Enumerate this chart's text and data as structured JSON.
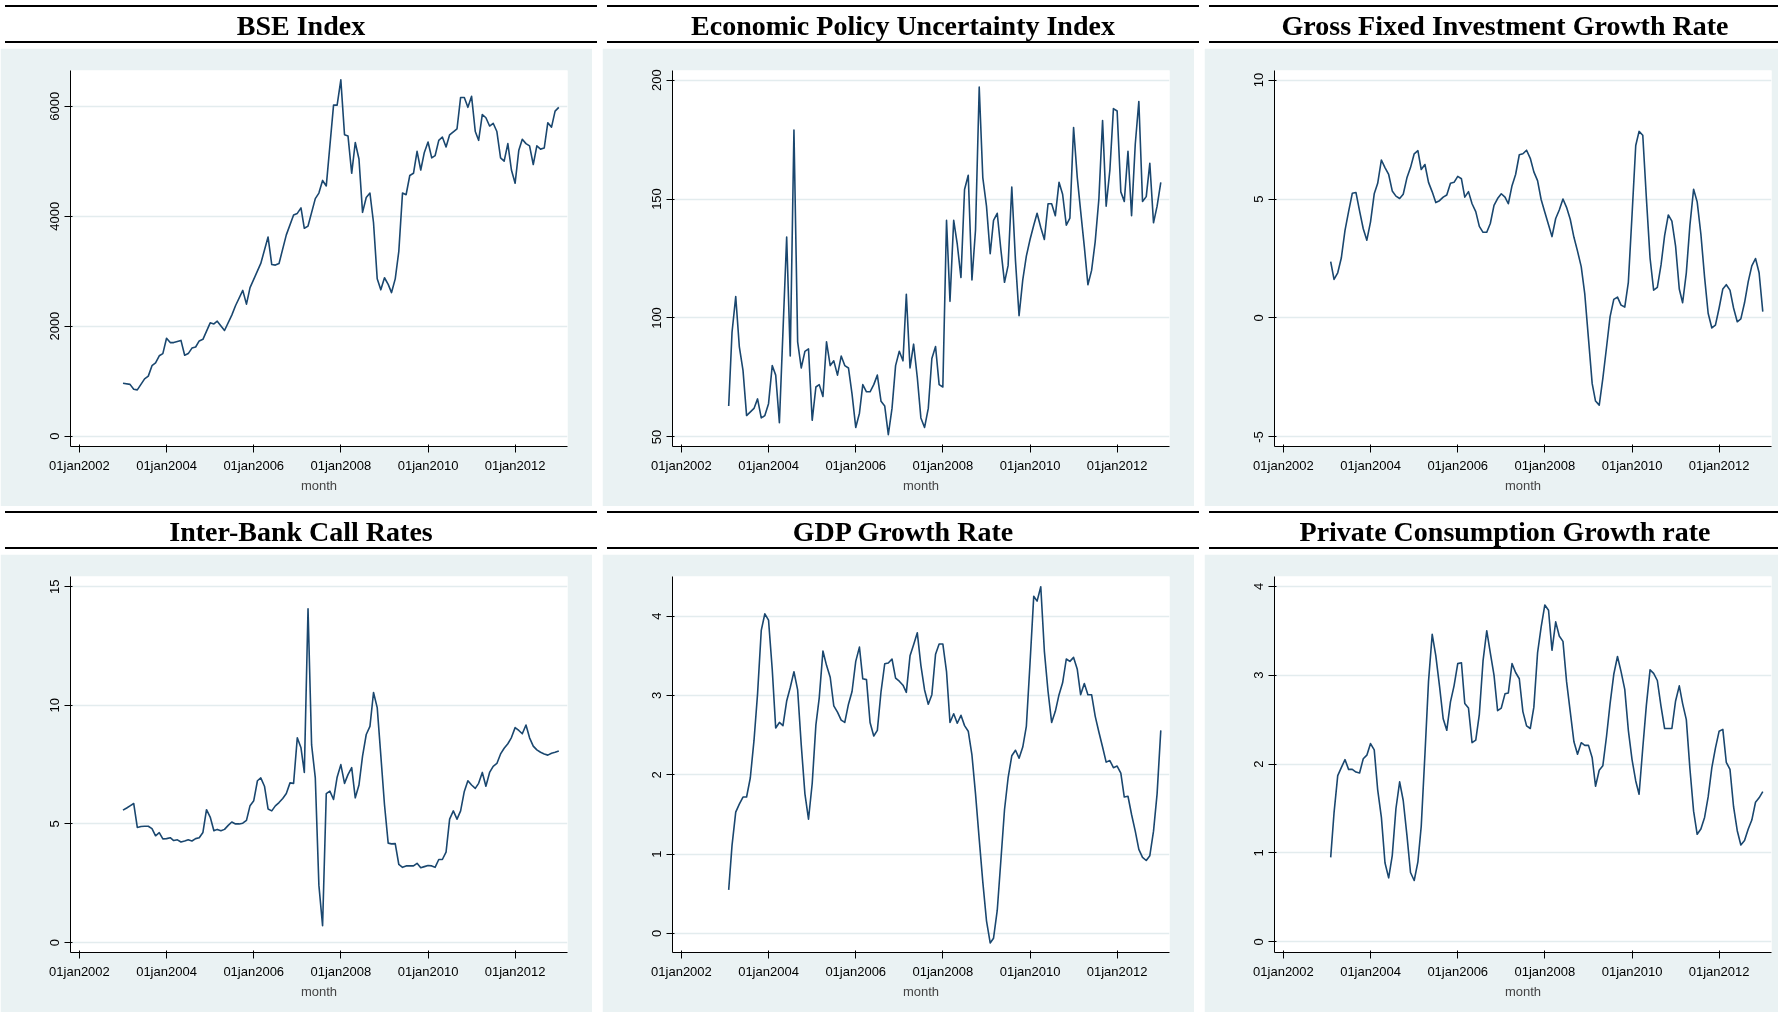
{
  "chart_data": [
    {
      "type": "line",
      "title": "BSE Index",
      "xlabel": "month",
      "color": "#1a476f",
      "grid": "y",
      "xlim": [
        "2001-10-18",
        "2013-03-15"
      ],
      "ylim": [
        -190,
        6650
      ],
      "yticks": [
        0,
        2000,
        4000,
        6000
      ],
      "xticks": [
        {
          "value": "2002-01-01",
          "label": "01jan2002"
        },
        {
          "value": "2004-01-01",
          "label": "01jan2004"
        },
        {
          "value": "2006-01-01",
          "label": "01jan2006"
        },
        {
          "value": "2008-01-01",
          "label": "01jan2008"
        },
        {
          "value": "2010-01-01",
          "label": "01jan2010"
        },
        {
          "value": "2012-01-01",
          "label": "01jan2012"
        }
      ],
      "x": [
        "2003-01",
        "2003-03",
        "2003-04",
        "2003-05",
        "2003-07",
        "2003-08",
        "2003-09",
        "2003-10",
        "2003-11",
        "2003-12",
        "2004-01",
        "2004-02",
        "2004-03",
        "2004-05",
        "2004-06",
        "2004-07",
        "2004-08",
        "2004-09",
        "2004-10",
        "2004-11",
        "2005-01",
        "2005-02",
        "2005-03",
        "2005-05",
        "2005-07",
        "2005-08",
        "2005-10",
        "2005-11",
        "2005-12",
        "2006-03",
        "2006-05",
        "2006-06",
        "2006-07",
        "2006-08",
        "2006-10",
        "2006-12",
        "2007-01",
        "2007-02",
        "2007-03",
        "2007-04",
        "2007-06",
        "2007-07",
        "2007-08",
        "2007-09",
        "2007-11",
        "2007-12",
        "2008-01",
        "2008-02",
        "2008-03",
        "2008-04",
        "2008-05",
        "2008-06",
        "2008-07",
        "2008-08",
        "2008-09",
        "2008-10",
        "2008-11",
        "2008-12",
        "2009-01",
        "2009-02",
        "2009-03",
        "2009-04",
        "2009-05",
        "2009-06",
        "2009-07",
        "2009-08",
        "2009-09",
        "2009-10",
        "2009-11",
        "2009-12",
        "2010-01",
        "2010-02",
        "2010-03",
        "2010-04",
        "2010-05",
        "2010-06",
        "2010-07",
        "2010-09",
        "2010-10",
        "2010-11",
        "2010-12",
        "2011-01",
        "2011-02",
        "2011-03",
        "2011-04",
        "2011-05",
        "2011-06",
        "2011-07",
        "2011-08",
        "2011-09",
        "2011-10",
        "2011-11",
        "2011-12",
        "2012-01",
        "2012-02",
        "2012-03",
        "2012-04",
        "2012-05",
        "2012-06",
        "2012-07",
        "2012-08",
        "2012-09",
        "2012-10",
        "2012-11",
        "2012-12",
        "2013-01"
      ],
      "values": [
        960,
        940,
        850,
        840,
        1040,
        1090,
        1280,
        1330,
        1460,
        1500,
        1780,
        1700,
        1700,
        1740,
        1470,
        1500,
        1600,
        1620,
        1730,
        1760,
        2060,
        2040,
        2090,
        1920,
        2200,
        2370,
        2650,
        2400,
        2700,
        3140,
        3620,
        3120,
        3110,
        3140,
        3660,
        4020,
        4050,
        4150,
        3780,
        3820,
        4320,
        4420,
        4650,
        4550,
        6020,
        6020,
        6480,
        5480,
        5460,
        4780,
        5340,
        5040,
        4070,
        4340,
        4420,
        3880,
        2860,
        2660,
        2880,
        2760,
        2610,
        2860,
        3360,
        4420,
        4390,
        4740,
        4780,
        5180,
        4840,
        5160,
        5350,
        5060,
        5100,
        5380,
        5440,
        5260,
        5480,
        5590,
        6160,
        6160,
        5980,
        6180,
        5540,
        5380,
        5850,
        5790,
        5640,
        5690,
        5540,
        5060,
        5000,
        5320,
        4840,
        4600,
        5200,
        5400,
        5320,
        5280,
        4940,
        5280,
        5220,
        5240,
        5700,
        5620,
        5910,
        5980
      ]
    },
    {
      "type": "line",
      "title": "Economic Policy Uncertainty Index",
      "xlabel": "month",
      "color": "#1a476f",
      "grid": "y",
      "xlim": [
        "2001-10-18",
        "2013-03-15"
      ],
      "ylim": [
        46,
        204
      ],
      "yticks": [
        50,
        100,
        150,
        200
      ],
      "xticks": [
        {
          "value": "2002-01-01",
          "label": "01jan2002"
        },
        {
          "value": "2004-01-01",
          "label": "01jan2004"
        },
        {
          "value": "2006-01-01",
          "label": "01jan2006"
        },
        {
          "value": "2008-01-01",
          "label": "01jan2008"
        },
        {
          "value": "2010-01-01",
          "label": "01jan2010"
        },
        {
          "value": "2012-01-01",
          "label": "01jan2012"
        }
      ],
      "x": [
        "2003-02",
        "2003-03",
        "2003-04",
        "2003-05",
        "2003-06",
        "2003-07",
        "2003-09",
        "2003-10",
        "2003-11",
        "2003-12",
        "2004-01",
        "2004-02",
        "2004-03",
        "2004-04",
        "2004-06",
        "2004-07",
        "2004-08",
        "2004-09",
        "2004-10",
        "2004-11",
        "2004-12",
        "2005-01",
        "2005-02",
        "2005-03",
        "2005-04",
        "2005-05",
        "2005-06",
        "2005-07",
        "2005-08",
        "2005-09",
        "2005-10",
        "2005-11",
        "2005-12",
        "2006-01",
        "2006-02",
        "2006-03",
        "2006-04",
        "2006-05",
        "2006-06",
        "2006-07",
        "2006-08",
        "2006-09",
        "2006-10",
        "2006-11",
        "2006-12",
        "2007-01",
        "2007-02",
        "2007-03",
        "2007-04",
        "2007-05",
        "2007-06",
        "2007-07",
        "2007-08",
        "2007-09",
        "2007-10",
        "2007-11",
        "2007-12",
        "2008-01",
        "2008-02",
        "2008-03",
        "2008-04",
        "2008-05",
        "2008-06",
        "2008-07",
        "2008-08",
        "2008-09",
        "2008-10",
        "2008-11",
        "2008-12",
        "2009-01",
        "2009-02",
        "2009-03",
        "2009-04",
        "2009-05",
        "2009-06",
        "2009-07",
        "2009-08",
        "2009-09",
        "2009-10",
        "2009-11",
        "2009-12",
        "2010-01",
        "2010-02",
        "2010-03",
        "2010-04",
        "2010-05",
        "2010-06",
        "2010-07",
        "2010-08",
        "2010-09",
        "2010-10",
        "2010-11",
        "2010-12",
        "2011-01",
        "2011-02",
        "2011-03",
        "2011-04",
        "2011-05",
        "2011-06",
        "2011-07",
        "2011-08",
        "2011-09",
        "2011-10",
        "2011-11",
        "2011-12",
        "2012-01",
        "2012-02",
        "2012-03",
        "2012-04",
        "2012-05",
        "2012-06",
        "2012-07",
        "2012-08",
        "2012-09",
        "2012-10",
        "2012-11",
        "2012-12",
        "2013-01"
      ],
      "values": [
        63,
        94,
        109,
        88,
        78,
        59,
        62,
        66,
        58,
        59,
        64,
        80,
        76,
        56,
        134,
        84,
        179,
        90,
        79,
        86,
        87,
        57,
        71,
        72,
        67,
        90,
        80,
        82,
        76,
        84,
        80,
        79,
        68,
        54,
        60,
        72,
        69,
        69,
        72,
        76,
        65,
        63,
        51,
        62,
        80,
        86,
        82,
        110,
        79,
        89,
        75,
        58,
        54,
        62,
        83,
        88,
        72,
        71,
        141,
        107,
        141,
        131,
        117,
        154,
        160,
        116,
        137,
        197,
        159,
        147,
        127,
        141,
        144,
        129,
        115,
        122,
        155,
        124,
        101,
        116,
        126,
        133,
        139,
        144,
        138,
        133,
        148,
        148,
        143,
        157,
        152,
        139,
        142,
        180,
        159,
        145,
        130,
        114,
        120,
        132,
        150,
        183,
        147,
        162,
        188,
        187,
        153,
        149,
        170,
        143,
        173,
        191,
        149,
        151,
        165,
        140,
        147,
        157
      ]
    },
    {
      "type": "line",
      "title": "Gross Fixed Investment Growth Rate",
      "xlabel": "month",
      "color": "#1a476f",
      "grid": "y",
      "xlim": [
        "2001-10-18",
        "2013-03-15"
      ],
      "ylim": [
        -5.4,
        10.4
      ],
      "yticks": [
        -5,
        0,
        5,
        10
      ],
      "xticks": [
        {
          "value": "2002-01-01",
          "label": "01jan2002"
        },
        {
          "value": "2004-01-01",
          "label": "01jan2004"
        },
        {
          "value": "2006-01-01",
          "label": "01jan2006"
        },
        {
          "value": "2008-01-01",
          "label": "01jan2008"
        },
        {
          "value": "2010-01-01",
          "label": "01jan2010"
        },
        {
          "value": "2012-01-01",
          "label": "01jan2012"
        }
      ],
      "x": [
        "2003-02",
        "2003-03",
        "2003-04",
        "2003-05",
        "2003-06",
        "2003-07",
        "2003-08",
        "2003-09",
        "2003-10",
        "2003-11",
        "2003-12",
        "2004-01",
        "2004-02",
        "2004-03",
        "2004-04",
        "2004-05",
        "2004-06",
        "2004-07",
        "2004-08",
        "2004-09",
        "2004-10",
        "2004-11",
        "2004-12",
        "2005-01",
        "2005-02",
        "2005-03",
        "2005-04",
        "2005-05",
        "2005-06",
        "2005-07",
        "2005-08",
        "2005-09",
        "2005-10",
        "2005-11",
        "2005-12",
        "2006-01",
        "2006-02",
        "2006-03",
        "2006-04",
        "2006-05",
        "2006-06",
        "2006-07",
        "2006-08",
        "2006-09",
        "2006-10",
        "2006-11",
        "2006-12",
        "2007-01",
        "2007-02",
        "2007-03",
        "2007-04",
        "2007-05",
        "2007-06",
        "2007-07",
        "2007-08",
        "2007-09",
        "2007-10",
        "2007-11",
        "2007-12",
        "2008-01",
        "2008-02",
        "2008-03",
        "2008-04",
        "2008-05",
        "2008-06",
        "2008-07",
        "2008-08",
        "2008-09",
        "2008-10",
        "2008-11",
        "2008-12",
        "2009-01",
        "2009-02",
        "2009-03",
        "2009-04",
        "2009-05",
        "2009-06",
        "2009-07",
        "2009-08",
        "2009-09",
        "2009-10",
        "2009-11",
        "2009-12",
        "2010-01",
        "2010-02",
        "2010-03",
        "2010-04",
        "2010-05",
        "2010-06",
        "2010-07",
        "2010-08",
        "2010-09",
        "2010-10",
        "2010-11",
        "2010-12",
        "2011-01",
        "2011-02",
        "2011-03",
        "2011-04",
        "2011-05",
        "2011-06",
        "2011-07",
        "2011-08",
        "2011-09",
        "2011-10",
        "2011-11",
        "2011-12",
        "2012-01",
        "2012-02",
        "2012-03",
        "2012-04",
        "2012-05",
        "2012-06",
        "2012-07",
        "2012-08",
        "2012-09",
        "2012-10",
        "2012-11",
        "2012-12",
        "2013-01"
      ],
      "values": [
        2.37,
        1.62,
        1.9,
        2.52,
        3.68,
        4.47,
        5.24,
        5.27,
        4.5,
        3.75,
        3.27,
        4.04,
        5.22,
        5.66,
        6.64,
        6.32,
        6.03,
        5.34,
        5.12,
        5.02,
        5.2,
        5.89,
        6.32,
        6.9,
        7.03,
        6.24,
        6.45,
        5.7,
        5.3,
        4.85,
        4.93,
        5.08,
        5.17,
        5.66,
        5.7,
        5.95,
        5.85,
        5.08,
        5.31,
        4.8,
        4.47,
        3.85,
        3.6,
        3.6,
        3.97,
        4.73,
        5.02,
        5.22,
        5.08,
        4.8,
        5.56,
        6.03,
        6.86,
        6.9,
        7.05,
        6.71,
        6.14,
        5.77,
        4.98,
        4.44,
        3.92,
        3.42,
        4.18,
        4.54,
        5.0,
        4.65,
        4.15,
        3.39,
        2.81,
        2.16,
        1.0,
        -0.88,
        -2.76,
        -3.49,
        -3.66,
        -2.55,
        -1.24,
        0.06,
        0.78,
        0.88,
        0.54,
        0.46,
        1.5,
        4.33,
        7.25,
        7.84,
        7.68,
        5.05,
        2.52,
        1.17,
        1.29,
        2.23,
        3.46,
        4.33,
        4.07,
        3.02,
        1.22,
        0.64,
        1.9,
        3.89,
        5.41,
        4.88,
        3.53,
        1.72,
        0.2,
        -0.42,
        -0.3,
        0.42,
        1.22,
        1.4,
        1.17,
        0.42,
        -0.16,
        -0.04,
        0.64,
        1.53,
        2.19,
        2.5,
        1.9,
        0.27
      ]
    },
    {
      "type": "line",
      "title": "Inter-Bank Call Rates",
      "xlabel": "month",
      "color": "#1a476f",
      "grid": "y",
      "xlim": [
        "2001-10-18",
        "2013-03-15"
      ],
      "ylim": [
        -0.42,
        15.43
      ],
      "yticks": [
        0,
        5,
        10,
        15
      ],
      "xticks": [
        {
          "value": "2002-01-01",
          "label": "01jan2002"
        },
        {
          "value": "2004-01-01",
          "label": "01jan2004"
        },
        {
          "value": "2006-01-01",
          "label": "01jan2006"
        },
        {
          "value": "2008-01-01",
          "label": "01jan2008"
        },
        {
          "value": "2010-01-01",
          "label": "01jan2010"
        },
        {
          "value": "2012-01-01",
          "label": "01jan2012"
        }
      ],
      "x": [
        "2003-01",
        "2003-02",
        "2003-03",
        "2003-04",
        "2003-05",
        "2003-06",
        "2003-07",
        "2003-08",
        "2003-09",
        "2003-10",
        "2003-11",
        "2003-12",
        "2004-01",
        "2004-02",
        "2004-03",
        "2004-04",
        "2004-05",
        "2004-06",
        "2004-07",
        "2004-08",
        "2004-09",
        "2004-10",
        "2004-11",
        "2004-12",
        "2005-01",
        "2005-02",
        "2005-03",
        "2005-04",
        "2005-05",
        "2005-06",
        "2005-07",
        "2005-08",
        "2005-09",
        "2005-10",
        "2005-11",
        "2005-12",
        "2006-01",
        "2006-02",
        "2006-03",
        "2006-04",
        "2006-05",
        "2006-06",
        "2006-07",
        "2006-08",
        "2006-09",
        "2006-10",
        "2006-11",
        "2006-12",
        "2007-01",
        "2007-02",
        "2007-03",
        "2007-04",
        "2007-05",
        "2007-06",
        "2007-07",
        "2007-08",
        "2007-09",
        "2007-10",
        "2007-11",
        "2007-12",
        "2008-01",
        "2008-02",
        "2008-03",
        "2008-04",
        "2008-05",
        "2008-06",
        "2008-07",
        "2008-08",
        "2008-09",
        "2008-10",
        "2008-11",
        "2008-12",
        "2009-01",
        "2009-02",
        "2009-03",
        "2009-04",
        "2009-05",
        "2009-06",
        "2009-07",
        "2009-08",
        "2009-09",
        "2009-10",
        "2009-11",
        "2009-12",
        "2010-01",
        "2010-02",
        "2010-03",
        "2010-04",
        "2010-05",
        "2010-06",
        "2010-07",
        "2010-08",
        "2010-09",
        "2010-10",
        "2010-11",
        "2010-12",
        "2011-01",
        "2011-02",
        "2011-03",
        "2011-04",
        "2011-05",
        "2011-06",
        "2011-07",
        "2011-08",
        "2011-09",
        "2011-10",
        "2011-11",
        "2011-12",
        "2012-01",
        "2012-02",
        "2012-03",
        "2012-04",
        "2012-05",
        "2012-06",
        "2012-07",
        "2012-08",
        "2012-09",
        "2012-10",
        "2012-11",
        "2012-12",
        "2013-01"
      ],
      "values": [
        5.58,
        5.67,
        5.76,
        5.86,
        4.85,
        4.89,
        4.9,
        4.9,
        4.8,
        4.5,
        4.63,
        4.37,
        4.38,
        4.42,
        4.3,
        4.33,
        4.24,
        4.28,
        4.33,
        4.28,
        4.38,
        4.42,
        4.64,
        5.6,
        5.29,
        4.71,
        4.77,
        4.71,
        4.77,
        4.94,
        5.08,
        5.0,
        5.0,
        5.03,
        5.15,
        5.77,
        5.98,
        6.82,
        6.94,
        6.59,
        5.63,
        5.55,
        5.76,
        5.9,
        6.07,
        6.28,
        6.73,
        6.71,
        8.63,
        8.21,
        7.17,
        14.07,
        8.33,
        6.94,
        2.42,
        0.71,
        6.28,
        6.38,
        6.03,
        6.97,
        7.5,
        6.71,
        7.08,
        7.37,
        6.1,
        6.64,
        7.86,
        8.77,
        9.11,
        10.54,
        9.9,
        7.9,
        5.81,
        4.19,
        4.16,
        4.17,
        3.29,
        3.17,
        3.23,
        3.23,
        3.23,
        3.34,
        3.15,
        3.2,
        3.25,
        3.23,
        3.17,
        3.5,
        3.5,
        3.81,
        5.2,
        5.55,
        5.2,
        5.55,
        6.37,
        6.82,
        6.64,
        6.5,
        6.71,
        7.17,
        6.59,
        7.17,
        7.43,
        7.55,
        7.95,
        8.19,
        8.38,
        8.64,
        9.06,
        8.94,
        8.8,
        9.17,
        8.63,
        8.28,
        8.12,
        8.02,
        7.95,
        7.9,
        7.98,
        8.02,
        8.07
      ]
    },
    {
      "type": "line",
      "title": "GDP Growth Rate",
      "xlabel": "month",
      "color": "#1a476f",
      "grid": "y",
      "xlim": [
        "2001-10-18",
        "2013-03-15"
      ],
      "ylim": [
        -0.24,
        4.5
      ],
      "yticks": [
        0,
        1,
        2,
        3,
        4
      ],
      "xticks": [
        {
          "value": "2002-01-01",
          "label": "01jan2002"
        },
        {
          "value": "2004-01-01",
          "label": "01jan2004"
        },
        {
          "value": "2006-01-01",
          "label": "01jan2006"
        },
        {
          "value": "2008-01-01",
          "label": "01jan2008"
        },
        {
          "value": "2010-01-01",
          "label": "01jan2010"
        },
        {
          "value": "2012-01-01",
          "label": "01jan2012"
        }
      ],
      "x": [
        "2003-02",
        "2003-03",
        "2003-04",
        "2003-05",
        "2003-06",
        "2003-07",
        "2003-08",
        "2003-09",
        "2003-10",
        "2003-11",
        "2003-12",
        "2004-01",
        "2004-02",
        "2004-03",
        "2004-04",
        "2004-05",
        "2004-06",
        "2004-07",
        "2004-08",
        "2004-09",
        "2004-10",
        "2004-11",
        "2004-12",
        "2005-01",
        "2005-02",
        "2005-03",
        "2005-04",
        "2005-05",
        "2005-06",
        "2005-07",
        "2005-08",
        "2005-09",
        "2005-10",
        "2005-11",
        "2005-12",
        "2006-01",
        "2006-02",
        "2006-03",
        "2006-04",
        "2006-05",
        "2006-06",
        "2006-07",
        "2006-08",
        "2006-09",
        "2006-10",
        "2006-11",
        "2006-12",
        "2007-01",
        "2007-02",
        "2007-03",
        "2007-04",
        "2007-05",
        "2007-06",
        "2007-07",
        "2007-08",
        "2007-09",
        "2007-10",
        "2007-11",
        "2007-12",
        "2008-01",
        "2008-02",
        "2008-03",
        "2008-04",
        "2008-05",
        "2008-06",
        "2008-07",
        "2008-08",
        "2008-09",
        "2008-10",
        "2008-11",
        "2008-12",
        "2009-01",
        "2009-02",
        "2009-03",
        "2009-04",
        "2009-05",
        "2009-06",
        "2009-07",
        "2009-08",
        "2009-09",
        "2009-10",
        "2009-11",
        "2009-12",
        "2010-01",
        "2010-02",
        "2010-03",
        "2010-04",
        "2010-05",
        "2010-06",
        "2010-07",
        "2010-08",
        "2010-09",
        "2010-10",
        "2010-11",
        "2010-12",
        "2011-01",
        "2011-02",
        "2011-03",
        "2011-04",
        "2011-05",
        "2011-06",
        "2011-07",
        "2011-08",
        "2011-09",
        "2011-10",
        "2011-11",
        "2011-12",
        "2012-01",
        "2012-02",
        "2012-03",
        "2012-04",
        "2012-05",
        "2012-06",
        "2012-07",
        "2012-08",
        "2012-09",
        "2012-10",
        "2012-11",
        "2012-12",
        "2013-01"
      ],
      "values": [
        0.55,
        1.11,
        1.53,
        1.63,
        1.72,
        1.72,
        1.96,
        2.43,
        3.02,
        3.82,
        4.03,
        3.95,
        3.33,
        2.59,
        2.66,
        2.62,
        2.93,
        3.1,
        3.3,
        3.07,
        2.38,
        1.76,
        1.44,
        1.89,
        2.63,
        2.97,
        3.56,
        3.38,
        3.23,
        2.87,
        2.79,
        2.69,
        2.66,
        2.89,
        3.05,
        3.43,
        3.61,
        3.21,
        3.2,
        2.66,
        2.49,
        2.56,
        3.05,
        3.4,
        3.41,
        3.46,
        3.22,
        3.18,
        3.13,
        3.04,
        3.5,
        3.64,
        3.79,
        3.38,
        3.07,
        2.89,
        3.01,
        3.52,
        3.65,
        3.65,
        3.3,
        2.66,
        2.77,
        2.65,
        2.75,
        2.62,
        2.55,
        2.25,
        1.76,
        1.19,
        0.65,
        0.16,
        -0.12,
        -0.06,
        0.29,
        0.91,
        1.56,
        1.96,
        2.24,
        2.31,
        2.21,
        2.35,
        2.61,
        3.41,
        4.25,
        4.19,
        4.37,
        3.56,
        3.05,
        2.66,
        2.8,
        3.01,
        3.16,
        3.46,
        3.43,
        3.48,
        3.33,
        3.01,
        3.15,
        3.01,
        3.01,
        2.74,
        2.54,
        2.35,
        2.16,
        2.18,
        2.09,
        2.11,
        2.02,
        1.72,
        1.73,
        1.5,
        1.29,
        1.06,
        0.96,
        0.92,
        0.98,
        1.29,
        1.76,
        2.56
      ]
    },
    {
      "type": "line",
      "title": "Private Consumption Growth rate",
      "xlabel": "month",
      "color": "#1a476f",
      "grid": "y",
      "xlim": [
        "2001-10-18",
        "2013-03-15"
      ],
      "ylim": [
        -0.12,
        4.11
      ],
      "yticks": [
        0,
        1,
        2,
        3,
        4
      ],
      "xticks": [
        {
          "value": "2002-01-01",
          "label": "01jan2002"
        },
        {
          "value": "2004-01-01",
          "label": "01jan2004"
        },
        {
          "value": "2006-01-01",
          "label": "01jan2006"
        },
        {
          "value": "2008-01-01",
          "label": "01jan2008"
        },
        {
          "value": "2010-01-01",
          "label": "01jan2010"
        },
        {
          "value": "2012-01-01",
          "label": "01jan2012"
        }
      ],
      "x": [
        "2003-02",
        "2003-03",
        "2003-04",
        "2003-05",
        "2003-06",
        "2003-07",
        "2003-08",
        "2003-09",
        "2003-10",
        "2003-11",
        "2003-12",
        "2004-01",
        "2004-02",
        "2004-03",
        "2004-04",
        "2004-05",
        "2004-06",
        "2004-07",
        "2004-08",
        "2004-09",
        "2004-10",
        "2004-11",
        "2004-12",
        "2005-01",
        "2005-02",
        "2005-03",
        "2005-04",
        "2005-05",
        "2005-06",
        "2005-07",
        "2005-08",
        "2005-09",
        "2005-10",
        "2005-11",
        "2005-12",
        "2006-01",
        "2006-02",
        "2006-03",
        "2006-04",
        "2006-05",
        "2006-06",
        "2006-07",
        "2006-08",
        "2006-09",
        "2006-10",
        "2006-11",
        "2006-12",
        "2007-01",
        "2007-02",
        "2007-03",
        "2007-04",
        "2007-05",
        "2007-06",
        "2007-07",
        "2007-08",
        "2007-09",
        "2007-10",
        "2007-11",
        "2007-12",
        "2008-01",
        "2008-02",
        "2008-03",
        "2008-04",
        "2008-05",
        "2008-06",
        "2008-07",
        "2008-08",
        "2008-09",
        "2008-10",
        "2008-11",
        "2008-12",
        "2009-01",
        "2009-02",
        "2009-03",
        "2009-04",
        "2009-05",
        "2009-06",
        "2009-07",
        "2009-08",
        "2009-09",
        "2009-10",
        "2009-11",
        "2009-12",
        "2010-01",
        "2010-02",
        "2010-03",
        "2010-04",
        "2010-05",
        "2010-06",
        "2010-07",
        "2010-08",
        "2010-09",
        "2010-10",
        "2010-11",
        "2010-12",
        "2011-01",
        "2011-02",
        "2011-03",
        "2011-04",
        "2011-05",
        "2011-06",
        "2011-07",
        "2011-08",
        "2011-09",
        "2011-10",
        "2011-11",
        "2011-12",
        "2012-01",
        "2012-02",
        "2012-03",
        "2012-04",
        "2012-05",
        "2012-06",
        "2012-07",
        "2012-08",
        "2012-09",
        "2012-10",
        "2012-11",
        "2012-12",
        "2013-01"
      ],
      "values": [
        0.95,
        1.45,
        1.87,
        1.96,
        2.05,
        1.94,
        1.94,
        1.91,
        1.9,
        2.06,
        2.1,
        2.23,
        2.16,
        1.71,
        1.4,
        0.89,
        0.72,
        0.97,
        1.5,
        1.8,
        1.59,
        1.2,
        0.78,
        0.69,
        0.9,
        1.3,
        2.11,
        2.93,
        3.46,
        3.22,
        2.88,
        2.51,
        2.38,
        2.7,
        2.88,
        3.13,
        3.14,
        2.68,
        2.63,
        2.24,
        2.27,
        2.56,
        3.16,
        3.5,
        3.25,
        3.0,
        2.6,
        2.63,
        2.79,
        2.8,
        3.13,
        3.03,
        2.96,
        2.59,
        2.43,
        2.4,
        2.64,
        3.25,
        3.54,
        3.79,
        3.73,
        3.28,
        3.6,
        3.44,
        3.38,
        2.93,
        2.59,
        2.25,
        2.11,
        2.24,
        2.21,
        2.21,
        2.07,
        1.75,
        1.93,
        1.98,
        2.31,
        2.68,
        3.01,
        3.21,
        3.04,
        2.84,
        2.38,
        2.05,
        1.81,
        1.66,
        2.18,
        2.66,
        3.06,
        3.02,
        2.94,
        2.65,
        2.4,
        2.4,
        2.4,
        2.71,
        2.88,
        2.68,
        2.5,
        1.95,
        1.47,
        1.21,
        1.27,
        1.4,
        1.63,
        1.96,
        2.18,
        2.37,
        2.39,
        2.02,
        1.94,
        1.52,
        1.25,
        1.09,
        1.14,
        1.27,
        1.37,
        1.57,
        1.62,
        1.69
      ]
    }
  ]
}
